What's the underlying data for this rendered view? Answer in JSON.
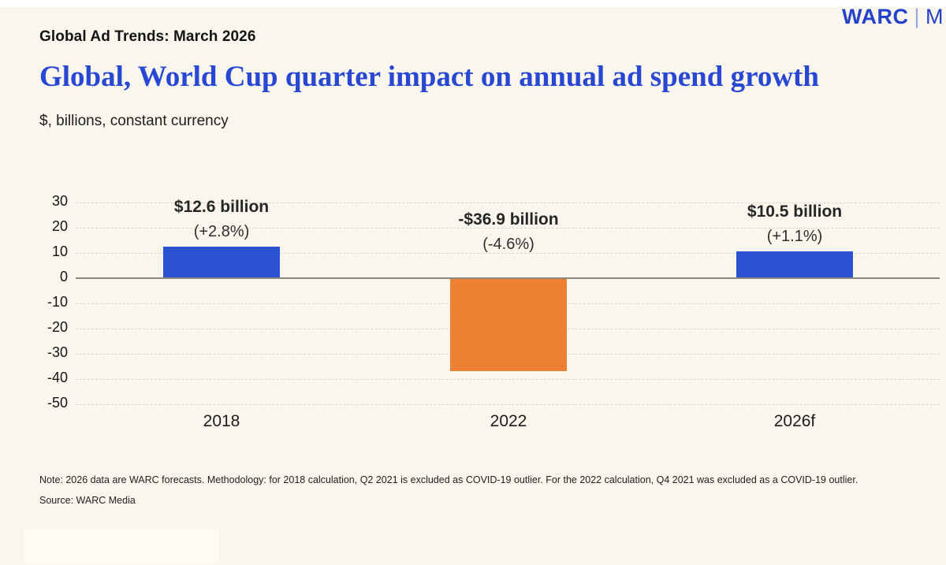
{
  "header": {
    "kicker": "Global Ad Trends: March 2026",
    "title": "Global, World Cup quarter impact on annual ad spend growth",
    "subtitle": "$, billions, constant currency",
    "logo": {
      "brand": "WARC",
      "separator": "|",
      "suffix": "M"
    }
  },
  "chart_data": {
    "type": "bar",
    "title": "Global, World Cup quarter impact on annual ad spend growth",
    "unit": "$, billions, constant currency",
    "categories": [
      "2018",
      "2022",
      "2026f"
    ],
    "values": [
      12.6,
      -36.9,
      10.5
    ],
    "bar_labels": [
      {
        "line1": "$12.6 billion",
        "line2": "(+2.8%)"
      },
      {
        "line1": "-$36.9 billion",
        "line2": "(-4.6%)"
      },
      {
        "line1": "$10.5 billion",
        "line2": "(+1.1%)"
      }
    ],
    "bar_colors": [
      "#2B52D3",
      "#EE8034",
      "#2B52D3"
    ],
    "ylim": [
      -50,
      30
    ],
    "yticks": [
      30,
      20,
      10,
      0,
      -10,
      -20,
      -30,
      -40,
      -50
    ],
    "xlabel": "",
    "ylabel": "$, billions",
    "grid": "horizontal-dashed",
    "legend": "none"
  },
  "footer": {
    "note": "Note: 2026 data are WARC forecasts. Methodology: for 2018 calculation, Q2 2021 is excluded as COVID-19 outlier. For the 2022 calculation, Q4 2021 was excluded as a COVID-19 outlier.",
    "source": "Source: WARC Media"
  },
  "colors": {
    "background": "#F9F6ED",
    "positive_bar": "#2B52D3",
    "negative_bar": "#EE8034",
    "title_blue": "#2847D2",
    "logo_blue": "#2540C9",
    "zero_line": "#8C8A80"
  }
}
